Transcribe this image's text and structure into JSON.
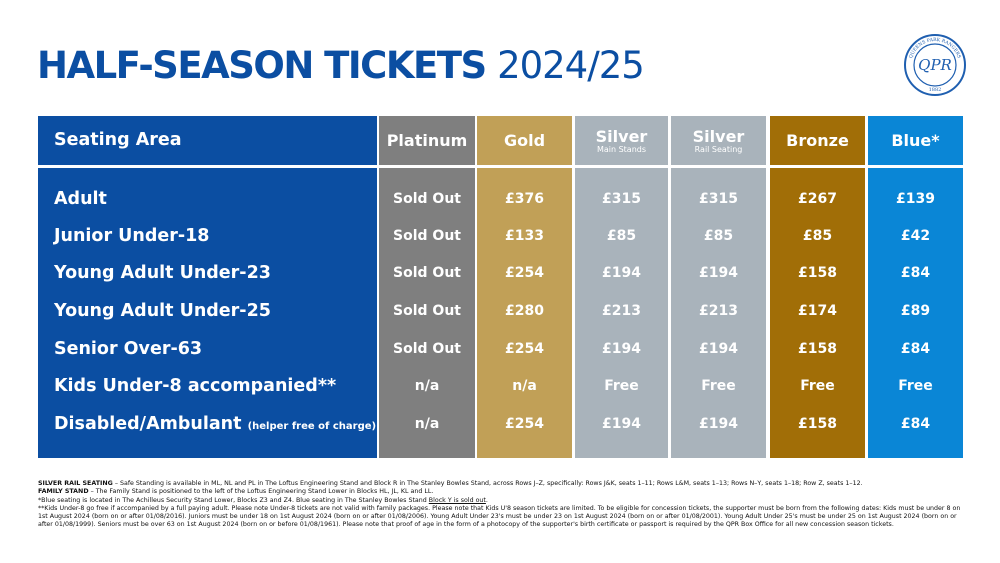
{
  "title": {
    "main": "HALF-SEASON TICKETS",
    "season": "2024/25"
  },
  "logo": {
    "text": "QUEENS PARK RANGERS",
    "monogram": "QPR",
    "year": "1882"
  },
  "colors": {
    "title": "#0b4ea2",
    "seating": "#0b4ea2",
    "platinum": "#7f7f7f",
    "gold": "#c1a057",
    "silver": "#a9b3bb",
    "bronze": "#a16e07",
    "blue": "#0a86d6"
  },
  "table": {
    "seating_header": "Seating Area",
    "columns": [
      {
        "label": "Platinum",
        "sub": "",
        "color": "#7f7f7f"
      },
      {
        "label": "Gold",
        "sub": "",
        "color": "#c1a057"
      },
      {
        "label": "Silver",
        "sub": "Main Stands",
        "color": "#a9b3bb"
      },
      {
        "label": "Silver",
        "sub": "Rail Seating",
        "color": "#a9b3bb"
      },
      {
        "label": "Bronze",
        "sub": "",
        "color": "#a16e07"
      },
      {
        "label": "Blue*",
        "sub": "",
        "color": "#0a86d6"
      }
    ],
    "rows": [
      {
        "label": "Adult",
        "note": "",
        "values": [
          "Sold Out",
          "£376",
          "£315",
          "£315",
          "£267",
          "£139"
        ]
      },
      {
        "label": "Junior Under-18",
        "note": "",
        "values": [
          "Sold Out",
          "£133",
          "£85",
          "£85",
          "£85",
          "£42"
        ]
      },
      {
        "label": "Young Adult Under-23",
        "note": "",
        "values": [
          "Sold Out",
          "£254",
          "£194",
          "£194",
          "£158",
          "£84"
        ]
      },
      {
        "label": "Young Adult Under-25",
        "note": "",
        "values": [
          "Sold Out",
          "£280",
          "£213",
          "£213",
          "£174",
          "£89"
        ]
      },
      {
        "label": "Senior Over-63",
        "note": "",
        "values": [
          "Sold Out",
          "£254",
          "£194",
          "£194",
          "£158",
          "£84"
        ]
      },
      {
        "label": "Kids Under-8 accompanied**",
        "note": "",
        "values": [
          "n/a",
          "n/a",
          "Free",
          "Free",
          "Free",
          "Free"
        ]
      },
      {
        "label": "Disabled/Ambulant",
        "note": "(helper free of charge)",
        "values": [
          "n/a",
          "£254",
          "£194",
          "£194",
          "£158",
          "£84"
        ]
      }
    ]
  },
  "notes": {
    "silver_rail_title": "SILVER RAIL SEATING",
    "silver_rail_text": " – Safe Standing is available in ML, NL and PL in The Loftus Engineering Stand and Block R in The Stanley Bowles Stand, across Rows J–Z, specifically: Rows J&K, seats 1–11; Rows L&M, seats 1–13; Rows N–Y, seats 1–18; Row Z, seats 1–12.",
    "family_title": "FAMILY STAND",
    "family_text": " – The Family Stand is positioned to the left of the Loftus Engineering Stand Lower in Blocks HL, JL, KL and LL.",
    "blue_text": "*Blue seating is located in The Achilleus Security Stand Lower, Blocks Z3 and Z4. Blue seating in The Stanley Bowles Stand ",
    "blue_link": "Block Y is sold out",
    "blue_end": ".",
    "kids_text": "**Kids Under-8 go free if accompanied by a full paying adult. Please note Under-8 tickets are not valid with family packages. Please note that Kids U'8 season tickets are limited. To be eligible for concession tickets, the supporter must be born from the following dates: Kids must be under 8 on 1st August 2024 (born on or after 01/08/2016). Juniors must be under 18 on 1st August 2024 (born on or after 01/08/2006). Young Adult Under 23's must be under 23 on 1st August 2024 (born on or after 01/08/2001). Young Adult Under 25's must be under 25 on 1st August 2024 (born on or after 01/08/1999). Seniors must be over 63 on 1st August 2024 (born on or before 01/08/1961). Please note that proof of age in the form of a photocopy of the supporter's birth certificate or passport is required by the QPR Box Office for all new concession season tickets."
  }
}
